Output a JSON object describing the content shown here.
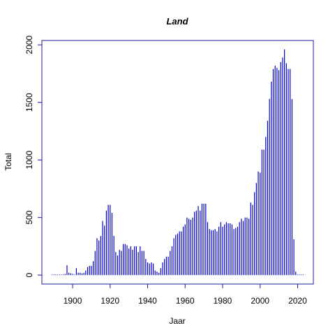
{
  "chart_data": {
    "type": "bar",
    "title": "Land",
    "xlabel": "Jaar",
    "ylabel": "Total",
    "color": "#0000cc",
    "axis_color": "#1a1a9c",
    "x": [
      1889,
      1890,
      1891,
      1892,
      1893,
      1894,
      1895,
      1896,
      1897,
      1898,
      1899,
      1900,
      1901,
      1902,
      1903,
      1904,
      1905,
      1906,
      1907,
      1908,
      1909,
      1910,
      1911,
      1912,
      1913,
      1914,
      1915,
      1916,
      1917,
      1918,
      1919,
      1920,
      1921,
      1922,
      1923,
      1924,
      1925,
      1926,
      1927,
      1928,
      1929,
      1930,
      1931,
      1932,
      1933,
      1934,
      1935,
      1936,
      1937,
      1938,
      1939,
      1940,
      1941,
      1942,
      1943,
      1944,
      1945,
      1946,
      1947,
      1948,
      1949,
      1950,
      1951,
      1952,
      1953,
      1954,
      1955,
      1956,
      1957,
      1958,
      1959,
      1960,
      1961,
      1962,
      1963,
      1964,
      1965,
      1966,
      1967,
      1968,
      1969,
      1970,
      1971,
      1972,
      1973,
      1974,
      1975,
      1976,
      1977,
      1978,
      1979,
      1980,
      1981,
      1982,
      1983,
      1984,
      1985,
      1986,
      1987,
      1988,
      1989,
      1990,
      1991,
      1992,
      1993,
      1994,
      1995,
      1996,
      1997,
      1998,
      1999,
      2000,
      2001,
      2002,
      2003,
      2004,
      2005,
      2006,
      2007,
      2008,
      2009,
      2010,
      2011,
      2012,
      2013,
      2014,
      2015,
      2016,
      2017,
      2018,
      2019,
      2020,
      2021,
      2022,
      2023
    ],
    "values": [
      2,
      0,
      0,
      0,
      0,
      0,
      5,
      10,
      85,
      20,
      15,
      10,
      5,
      60,
      20,
      20,
      15,
      20,
      40,
      70,
      80,
      80,
      120,
      210,
      320,
      300,
      340,
      470,
      430,
      560,
      610,
      610,
      540,
      340,
      200,
      170,
      220,
      210,
      270,
      270,
      260,
      230,
      250,
      220,
      250,
      250,
      200,
      250,
      210,
      210,
      140,
      110,
      100,
      110,
      100,
      40,
      30,
      20,
      60,
      110,
      140,
      160,
      160,
      210,
      250,
      320,
      350,
      360,
      380,
      380,
      420,
      440,
      500,
      490,
      480,
      500,
      550,
      560,
      600,
      560,
      620,
      620,
      620,
      460,
      400,
      390,
      390,
      400,
      380,
      420,
      460,
      420,
      440,
      460,
      450,
      450,
      440,
      400,
      410,
      420,
      460,
      490,
      470,
      500,
      500,
      490,
      630,
      610,
      720,
      800,
      900,
      890,
      1090,
      1090,
      1200,
      1340,
      1530,
      1680,
      1790,
      1820,
      1800,
      1780,
      1850,
      1890,
      1960,
      1840,
      1790,
      1790,
      1530,
      310,
      30,
      0,
      0,
      0,
      2
    ],
    "xlim": [
      1883.6,
      2028.4
    ],
    "ylim": [
      -78,
      2038
    ],
    "xticks": [
      1900,
      1920,
      1940,
      1960,
      1980,
      2000,
      2020
    ],
    "yticks": [
      0,
      500,
      1000,
      1500,
      2000
    ]
  }
}
